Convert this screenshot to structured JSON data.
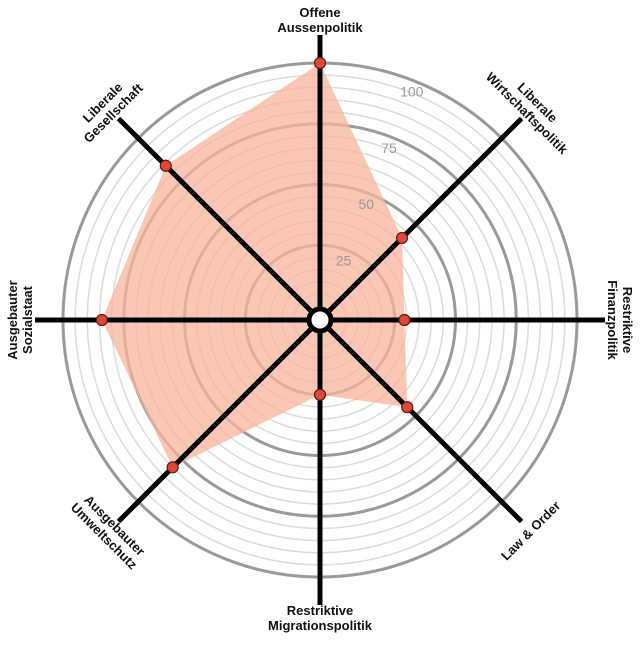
{
  "chart_data": {
    "type": "radar",
    "axes": [
      [
        "Offene",
        "Aussenpolitik"
      ],
      [
        "Liberale",
        "Wirtschaftspolitik"
      ],
      [
        "Restriktive",
        "Finanzpolitik"
      ],
      [
        "Law & Order"
      ],
      [
        "Restriktive",
        "Migrationspolitik"
      ],
      [
        "Ausgebauter",
        "Umweltschutz"
      ],
      [
        "Ausgebauter",
        "Sozialstaat"
      ],
      [
        "Liberale",
        "Gesellschaft"
      ]
    ],
    "values": [
      100,
      42,
      29,
      45,
      25,
      80,
      84,
      84
    ],
    "rlim": [
      0,
      100
    ],
    "rticks": [
      25,
      50,
      75,
      100
    ],
    "minor_grid_step": 5,
    "fill_color": "#f7b49a",
    "point_color": "#e0473b",
    "axis_color": "#000000"
  }
}
